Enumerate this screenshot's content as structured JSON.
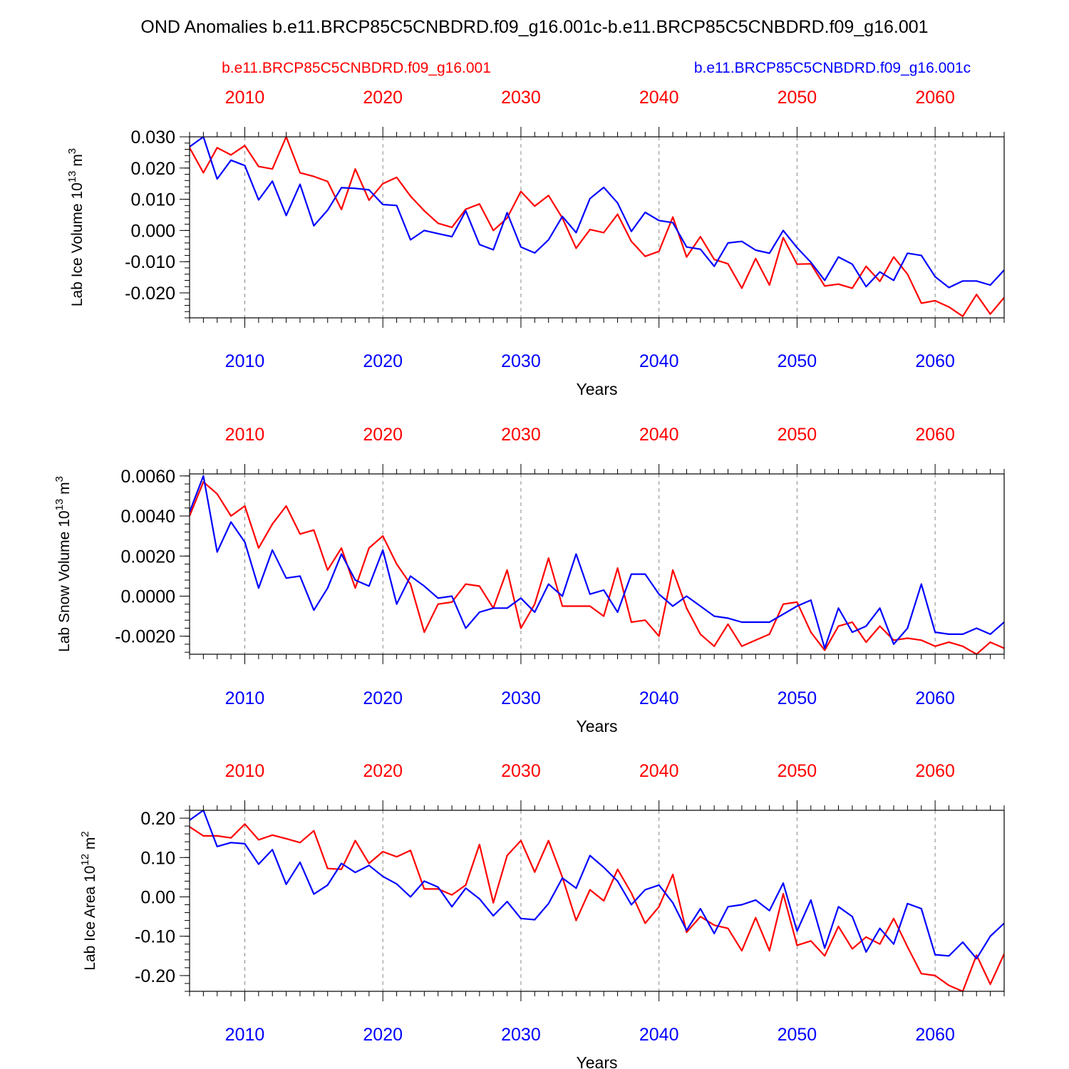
{
  "title": "OND Anomalies b.e11.BRCP85C5CNBDRD.f09_g16.001c-b.e11.BRCP85C5CNBDRD.f09_g16.001",
  "legend": {
    "left": "b.e11.BRCP85C5CNBDRD.f09_g16.001",
    "right": "b.e11.BRCP85C5CNBDRD.f09_g16.001c"
  },
  "colors": {
    "red": "#ff0000",
    "blue": "#0000ff"
  },
  "chart_data": [
    {
      "type": "line",
      "ylabel": "Lab Ice Volume 10",
      "ylabel_exp": "13",
      "ylabel_unit": " m",
      "ylabel_unit_exp": "3",
      "xlabel": "Years",
      "xlim": [
        2006,
        2065
      ],
      "ylim": [
        -0.028,
        0.03
      ],
      "yticks": [
        -0.02,
        -0.01,
        0.0,
        0.01,
        0.02,
        0.03
      ],
      "ytick_labels": [
        "-0.020",
        "-0.010",
        "0.000",
        "0.010",
        "0.020",
        "0.030"
      ],
      "yminor_step": 0.002,
      "xticks": [
        2010,
        2020,
        2030,
        2040,
        2050,
        2060
      ],
      "xtick_labels": [
        "2010",
        "2020",
        "2030",
        "2040",
        "2050",
        "2060"
      ],
      "x_start": 2006,
      "series": [
        {
          "name": "b.e11.BRCP85C5CNBDRD.f09_g16.001",
          "color": "red",
          "values": [
            0.0265,
            0.0185,
            0.0265,
            0.0242,
            0.0272,
            0.0205,
            0.0197,
            0.03,
            0.0185,
            0.0173,
            0.0157,
            0.0067,
            0.0197,
            0.0097,
            0.015,
            0.017,
            0.011,
            0.0063,
            0.0023,
            0.001,
            0.0068,
            0.0085,
            0.0,
            0.004,
            0.0125,
            0.0078,
            0.0112,
            0.004,
            -0.0057,
            0.0003,
            -0.0007,
            0.0052,
            -0.0035,
            -0.0083,
            -0.0067,
            0.0043,
            -0.0085,
            -0.002,
            -0.0093,
            -0.0107,
            -0.0185,
            -0.009,
            -0.0175,
            -0.0023,
            -0.0108,
            -0.0107,
            -0.0178,
            -0.0172,
            -0.0185,
            -0.0115,
            -0.0163,
            -0.0085,
            -0.014,
            -0.0233,
            -0.0225,
            -0.0245,
            -0.0275,
            -0.0205,
            -0.0268,
            -0.0215
          ]
        },
        {
          "name": "b.e11.BRCP85C5CNBDRD.f09_g16.001c",
          "color": "blue",
          "values": [
            0.0268,
            0.03,
            0.0165,
            0.0225,
            0.0208,
            0.0098,
            0.0158,
            0.0048,
            0.0148,
            0.0015,
            0.0065,
            0.0137,
            0.0135,
            0.013,
            0.0083,
            0.008,
            -0.003,
            0.0,
            -0.001,
            -0.002,
            0.0063,
            -0.0045,
            -0.0062,
            0.0057,
            -0.0053,
            -0.0072,
            -0.003,
            0.0045,
            -0.0007,
            0.0102,
            0.0138,
            0.0088,
            -0.0003,
            0.0058,
            0.0032,
            0.0025,
            -0.0053,
            -0.006,
            -0.0115,
            -0.004,
            -0.0035,
            -0.0063,
            -0.0073,
            0.0,
            -0.0055,
            -0.0102,
            -0.016,
            -0.0085,
            -0.0108,
            -0.018,
            -0.0133,
            -0.016,
            -0.0073,
            -0.008,
            -0.0148,
            -0.0183,
            -0.0162,
            -0.0162,
            -0.0175,
            -0.0127
          ]
        }
      ]
    },
    {
      "type": "line",
      "ylabel": "Lab Snow Volume 10",
      "ylabel_exp": "13",
      "ylabel_unit": " m",
      "ylabel_unit_exp": "3",
      "xlabel": "Years",
      "xlim": [
        2006,
        2065
      ],
      "ylim": [
        -0.0029,
        0.0061
      ],
      "yticks": [
        -0.002,
        0.0,
        0.002,
        0.004,
        0.006
      ],
      "ytick_labels": [
        "-0.0020",
        "0.0000",
        "0.0020",
        "0.0040",
        "0.0060"
      ],
      "yminor_step": 0.0004,
      "xticks": [
        2010,
        2020,
        2030,
        2040,
        2050,
        2060
      ],
      "xtick_labels": [
        "2010",
        "2020",
        "2030",
        "2040",
        "2050",
        "2060"
      ],
      "x_start": 2006,
      "series": [
        {
          "name": "b.e11.BRCP85C5CNBDRD.f09_g16.001",
          "color": "red",
          "values": [
            0.004,
            0.0057,
            0.0051,
            0.004,
            0.0045,
            0.0024,
            0.0036,
            0.0045,
            0.0031,
            0.0033,
            0.0013,
            0.0024,
            0.0004,
            0.0024,
            0.003,
            0.0016,
            0.0006,
            -0.0018,
            -0.0004,
            -0.0003,
            0.0006,
            0.0005,
            -0.0006,
            0.0013,
            -0.0016,
            -0.0004,
            0.0019,
            -0.0005,
            -0.0005,
            -0.0005,
            -0.001,
            0.0014,
            -0.0013,
            -0.0012,
            -0.002,
            0.0013,
            -0.0006,
            -0.0019,
            -0.0025,
            -0.0014,
            -0.0025,
            -0.0022,
            -0.0019,
            -0.0004,
            -0.0003,
            -0.0018,
            -0.0027,
            -0.0015,
            -0.0013,
            -0.0023,
            -0.0015,
            -0.0022,
            -0.0021,
            -0.0022,
            -0.0025,
            -0.0023,
            -0.0025,
            -0.0029,
            -0.0023,
            -0.0026
          ]
        },
        {
          "name": "b.e11.BRCP85C5CNBDRD.f09_g16.001c",
          "color": "blue",
          "values": [
            0.0042,
            0.006,
            0.0022,
            0.0037,
            0.0027,
            0.0004,
            0.0023,
            0.0009,
            0.001,
            -0.0007,
            0.0004,
            0.0021,
            0.0008,
            0.0005,
            0.0023,
            -0.0004,
            0.001,
            0.0005,
            -0.0001,
            0.0,
            -0.0016,
            -0.0008,
            -0.0006,
            -0.0006,
            -0.0001,
            -0.0008,
            0.0006,
            0.0,
            0.0021,
            0.0001,
            0.0003,
            -0.0008,
            0.0011,
            0.0011,
            0.0001,
            -0.0005,
            0.0,
            -0.0005,
            -0.001,
            -0.0011,
            -0.0013,
            -0.0013,
            -0.0013,
            -0.0009,
            -0.0005,
            -0.0002,
            -0.0026,
            -0.0006,
            -0.0018,
            -0.0015,
            -0.0006,
            -0.0024,
            -0.0016,
            0.0006,
            -0.0018,
            -0.0019,
            -0.0019,
            -0.0016,
            -0.0019,
            -0.0013
          ]
        }
      ]
    },
    {
      "type": "line",
      "ylabel": "Lab Ice Area 10",
      "ylabel_exp": "12",
      "ylabel_unit": " m",
      "ylabel_unit_exp": "2",
      "xlabel": "Years",
      "xlim": [
        2006,
        2065
      ],
      "ylim": [
        -0.24,
        0.22
      ],
      "yticks": [
        -0.2,
        -0.1,
        0.0,
        0.1,
        0.2
      ],
      "ytick_labels": [
        "-0.20",
        "-0.10",
        "0.00",
        "0.10",
        "0.20"
      ],
      "yminor_step": 0.02,
      "xticks": [
        2010,
        2020,
        2030,
        2040,
        2050,
        2060
      ],
      "xtick_labels": [
        "2010",
        "2020",
        "2030",
        "2040",
        "2050",
        "2060"
      ],
      "x_start": 2006,
      "series": [
        {
          "name": "b.e11.BRCP85C5CNBDRD.f09_g16.001",
          "color": "red",
          "values": [
            0.178,
            0.155,
            0.155,
            0.15,
            0.185,
            0.145,
            0.157,
            0.148,
            0.138,
            0.168,
            0.072,
            0.07,
            0.143,
            0.085,
            0.115,
            0.102,
            0.118,
            0.02,
            0.02,
            0.005,
            0.03,
            0.133,
            -0.015,
            0.105,
            0.143,
            0.063,
            0.143,
            0.05,
            -0.06,
            0.018,
            -0.01,
            0.07,
            0.01,
            -0.067,
            -0.025,
            0.057,
            -0.09,
            -0.05,
            -0.072,
            -0.08,
            -0.137,
            -0.053,
            -0.137,
            0.008,
            -0.123,
            -0.112,
            -0.15,
            -0.075,
            -0.132,
            -0.102,
            -0.12,
            -0.055,
            -0.127,
            -0.195,
            -0.2,
            -0.225,
            -0.24,
            -0.148,
            -0.222,
            -0.145
          ]
        },
        {
          "name": "b.e11.BRCP85C5CNBDRD.f09_g16.001c",
          "color": "blue",
          "values": [
            0.195,
            0.22,
            0.128,
            0.138,
            0.135,
            0.083,
            0.12,
            0.032,
            0.088,
            0.007,
            0.03,
            0.085,
            0.062,
            0.08,
            0.052,
            0.033,
            0.0,
            0.04,
            0.025,
            -0.025,
            0.022,
            -0.005,
            -0.048,
            -0.012,
            -0.055,
            -0.058,
            -0.017,
            0.048,
            0.022,
            0.105,
            0.075,
            0.04,
            -0.02,
            0.018,
            0.03,
            -0.015,
            -0.085,
            -0.03,
            -0.093,
            -0.025,
            -0.02,
            -0.008,
            -0.035,
            0.035,
            -0.087,
            -0.008,
            -0.13,
            -0.025,
            -0.05,
            -0.14,
            -0.08,
            -0.12,
            -0.017,
            -0.03,
            -0.147,
            -0.15,
            -0.115,
            -0.157,
            -0.1,
            -0.067
          ]
        }
      ]
    }
  ]
}
